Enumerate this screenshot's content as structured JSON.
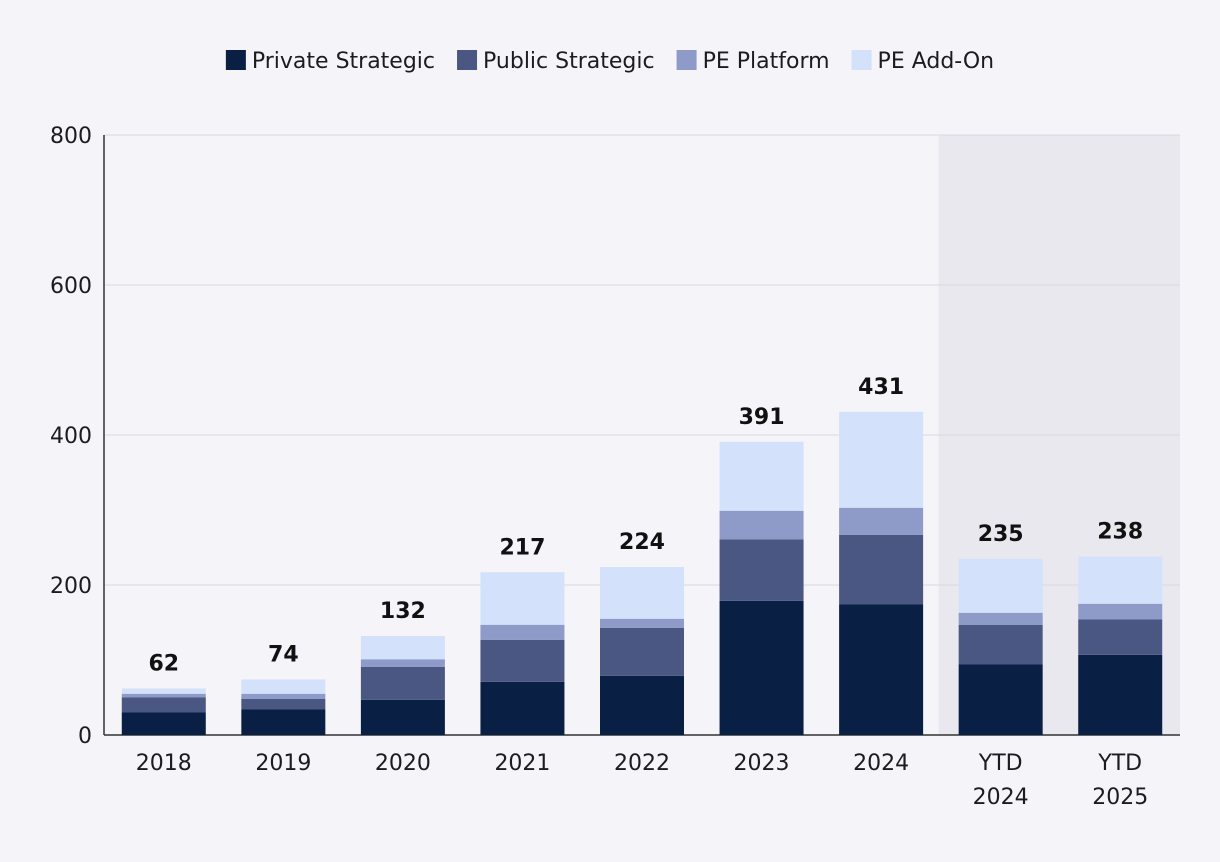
{
  "chart_data": {
    "type": "bar",
    "stacked": true,
    "categories": [
      "2018",
      "2019",
      "2020",
      "2021",
      "2022",
      "2023",
      "2024",
      "YTD 2024",
      "YTD 2025"
    ],
    "series": [
      {
        "name": "Private Strategic",
        "color": "#0a1f44",
        "values": [
          30,
          34,
          47,
          71,
          79,
          179,
          174,
          94,
          107
        ]
      },
      {
        "name": "Public Strategic",
        "color": "#4a5783",
        "values": [
          20,
          14,
          44,
          56,
          64,
          82,
          93,
          53,
          47
        ]
      },
      {
        "name": "PE Platform",
        "color": "#8e9ac8",
        "values": [
          5,
          7,
          10,
          20,
          12,
          38,
          36,
          16,
          21
        ]
      },
      {
        "name": "PE Add-On",
        "color": "#d3e1fb",
        "values": [
          7,
          19,
          31,
          70,
          69,
          92,
          128,
          72,
          63
        ]
      }
    ],
    "totals": [
      62,
      74,
      132,
      217,
      224,
      391,
      431,
      235,
      238
    ],
    "ylim": [
      0,
      800
    ],
    "yticks": [
      0,
      200,
      400,
      600,
      800
    ],
    "highlighted_categories": [
      "YTD 2024",
      "YTD 2025"
    ],
    "highlight_color": "#e9e8ee",
    "grid": true,
    "legend_position": "top-center",
    "title": "",
    "xlabel": "",
    "ylabel": ""
  }
}
